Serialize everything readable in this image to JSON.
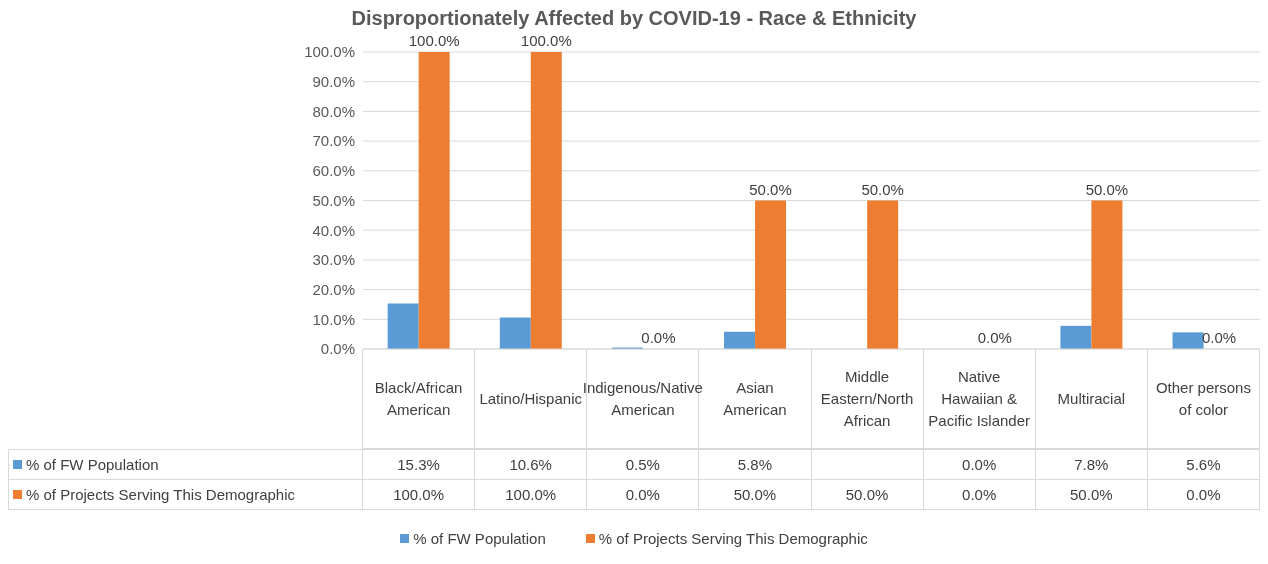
{
  "chart_data": {
    "type": "bar",
    "title": "Disproportionately Affected by COVID-19 - Race & Ethnicity",
    "categories": [
      "Black/African American",
      "Latino/Hispanic",
      "Indigenous/Native American",
      "Asian American",
      "Middle Eastern/North African",
      "Native Hawaiian & Pacific Islander",
      "Multiracial",
      "Other persons of color"
    ],
    "series": [
      {
        "name": "% of FW Population",
        "color": "#5b9bd5",
        "values": [
          15.3,
          10.6,
          0.5,
          5.8,
          null,
          0.0,
          7.8,
          5.6
        ],
        "value_labels": [
          "15.3%",
          "10.6%",
          "0.5%",
          "5.8%",
          null,
          "0.0%",
          "7.8%",
          "5.6%"
        ]
      },
      {
        "name": "% of Projects Serving This Demographic",
        "color": "#ed7d31",
        "values": [
          100.0,
          100.0,
          0.0,
          50.0,
          50.0,
          0.0,
          50.0,
          0.0
        ],
        "value_labels": [
          "100.0%",
          "100.0%",
          "0.0%",
          "50.0%",
          "50.0%",
          "0.0%",
          "50.0%",
          "0.0%"
        ]
      }
    ],
    "ylim": [
      0,
      100
    ],
    "yticks": [
      {
        "value": 0,
        "label": "0.0%"
      },
      {
        "value": 10,
        "label": "10.0%"
      },
      {
        "value": 20,
        "label": "20.0%"
      },
      {
        "value": 30,
        "label": "30.0%"
      },
      {
        "value": 40,
        "label": "40.0%"
      },
      {
        "value": 50,
        "label": "50.0%"
      },
      {
        "value": 60,
        "label": "60.0%"
      },
      {
        "value": 70,
        "label": "70.0%"
      },
      {
        "value": 80,
        "label": "80.0%"
      },
      {
        "value": 90,
        "label": "90.0%"
      },
      {
        "value": 100,
        "label": "100.0%"
      }
    ],
    "grid": "y",
    "legend": "bottom"
  }
}
